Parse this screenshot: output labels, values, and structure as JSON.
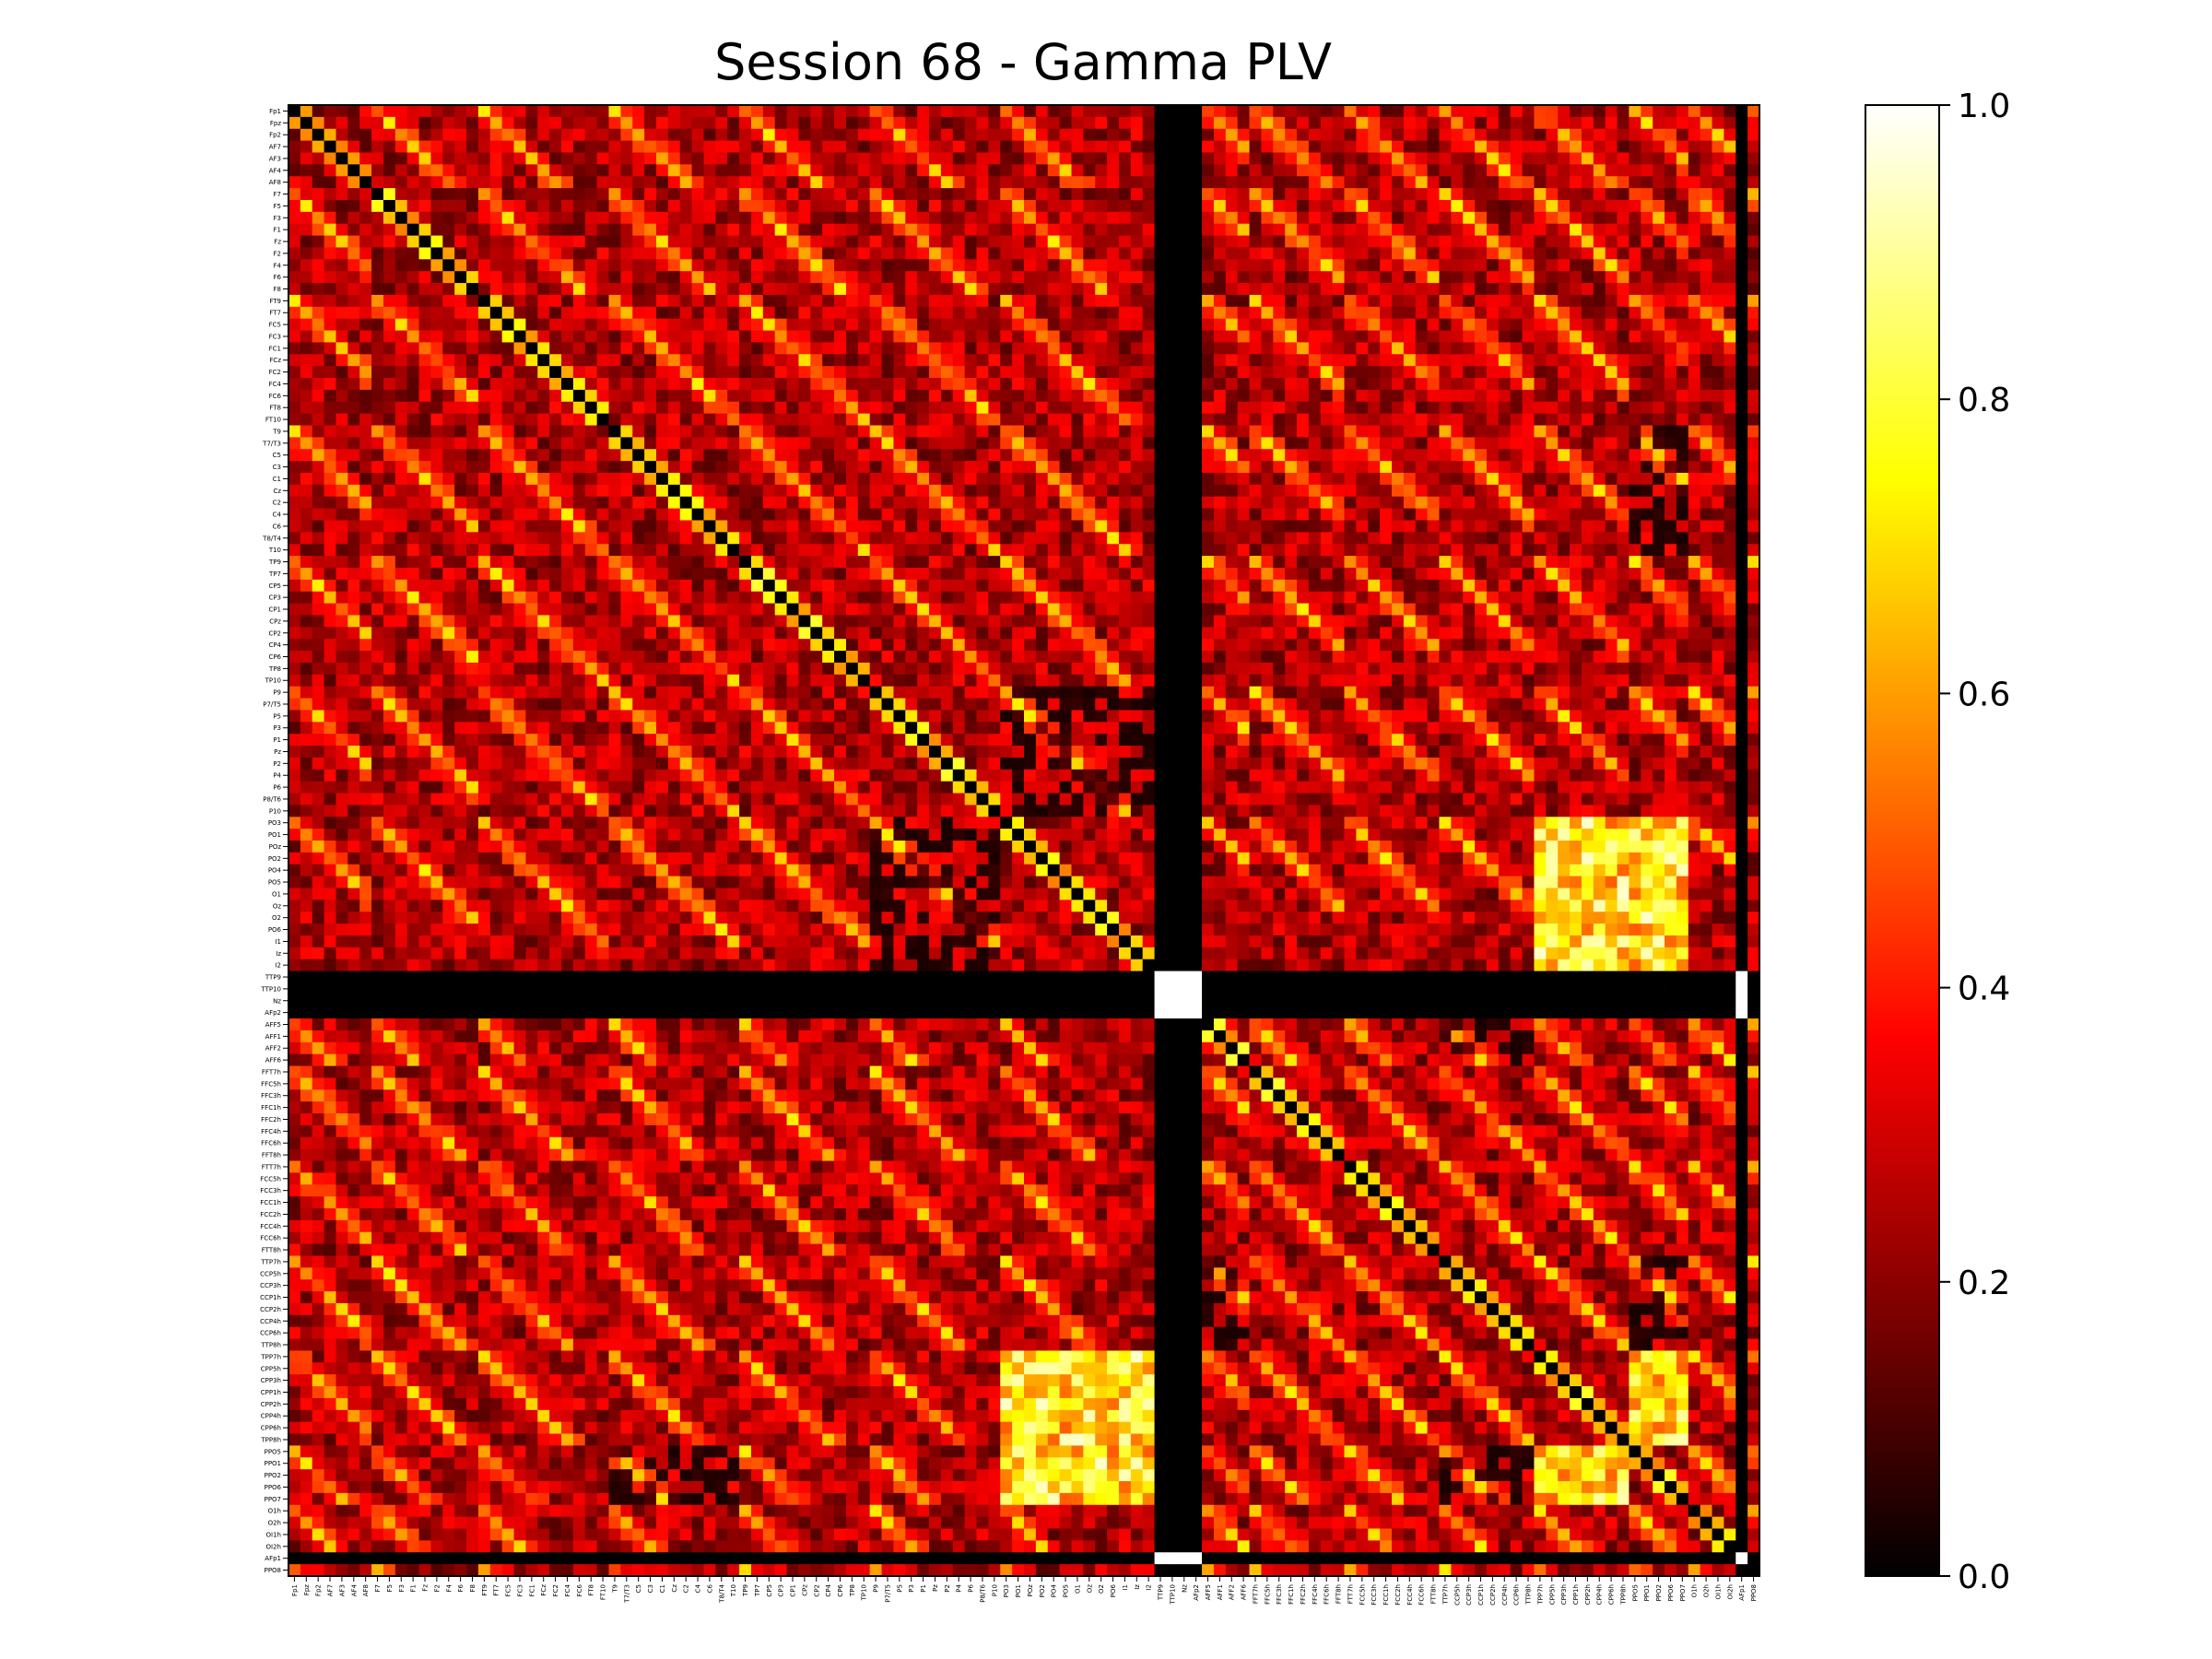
{
  "chart_data": {
    "type": "heatmap",
    "title": "Session 68 - Gamma PLV",
    "xlabel": "",
    "ylabel": "",
    "channels": [
      "Fp1",
      "Fpz",
      "Fp2",
      "AF7",
      "AF3",
      "AF4",
      "AF8",
      "F7",
      "F5",
      "F3",
      "F1",
      "Fz",
      "F2",
      "F4",
      "F6",
      "F8",
      "FT9",
      "FT7",
      "FC5",
      "FC3",
      "FC1",
      "FCz",
      "FC2",
      "FC4",
      "FC6",
      "FT8",
      "FT10",
      "T9",
      "T7/T3",
      "C5",
      "C3",
      "C1",
      "Cz",
      "C2",
      "C4",
      "C6",
      "T8/T4",
      "T10",
      "TP9",
      "TP7",
      "CP5",
      "CP3",
      "CP1",
      "CPz",
      "CP2",
      "CP4",
      "CP6",
      "TP8",
      "TP10",
      "P9",
      "P7/T5",
      "P5",
      "P3",
      "P1",
      "Pz",
      "P2",
      "P4",
      "P6",
      "P8/T6",
      "P10",
      "PO3",
      "PO1",
      "POz",
      "PO2",
      "PO4",
      "PO5",
      "O1",
      "Oz",
      "O2",
      "PO6",
      "I1",
      "Iz",
      "I2",
      "TTP9",
      "TTP10",
      "Nz",
      "AFp2",
      "AFF5",
      "AFF1",
      "AFF2",
      "AFF6",
      "FFT7h",
      "FFC5h",
      "FFC3h",
      "FFC1h",
      "FFC2h",
      "FFC4h",
      "FFC6h",
      "FFT8h",
      "FTT7h",
      "FCC5h",
      "FCC3h",
      "FCC1h",
      "FCC2h",
      "FCC4h",
      "FCC6h",
      "FTT8h",
      "TTP7h",
      "CCP5h",
      "CCP3h",
      "CCP1h",
      "CCP2h",
      "CCP4h",
      "CCP6h",
      "TTP8h",
      "TPP7h",
      "CPP5h",
      "CPP3h",
      "CPP1h",
      "CPP2h",
      "CPP4h",
      "CPP6h",
      "TPP8h",
      "PPO5",
      "PPO1",
      "PPO2",
      "PPO6",
      "PPO7",
      "O1h",
      "O2h",
      "OI1h",
      "OI2h",
      "AFp1",
      "PPO8"
    ],
    "groups": [
      [
        0,
        7
      ],
      [
        7,
        16
      ],
      [
        16,
        27
      ],
      [
        27,
        38
      ],
      [
        38,
        49
      ],
      [
        49,
        60
      ],
      [
        60,
        73
      ],
      [
        73,
        77
      ],
      [
        77,
        81
      ],
      [
        81,
        89
      ],
      [
        89,
        97
      ],
      [
        97,
        105
      ],
      [
        105,
        113
      ],
      [
        113,
        118
      ],
      [
        118,
        122
      ],
      [
        122,
        123
      ],
      [
        123,
        124
      ]
    ],
    "flat_channels": [
      73,
      74,
      75,
      76,
      122
    ],
    "zero_groups": [
      [
        5,
        6
      ],
      [
        8,
        11
      ],
      [
        3,
        13
      ],
      [
        11,
        13
      ],
      [
        4,
        7
      ]
    ],
    "hot_groups": [
      [
        6,
        12
      ],
      [
        6,
        13
      ],
      [
        12,
        13
      ]
    ],
    "colorbar": {
      "min": 0.0,
      "max": 1.0,
      "ticks": [
        "0.0",
        "0.2",
        "0.4",
        "0.6",
        "0.8",
        "1.0"
      ],
      "colormap": "hot"
    },
    "value_summary": {
      "diagonal": 0.0,
      "adjacent_off_diagonal": [
        0.55,
        0.8
      ],
      "homologous_diagonals": [
        0.45,
        0.7
      ],
      "occipital_block": [
        0.5,
        0.95
      ],
      "background": [
        0.05,
        0.4
      ],
      "flat_channel_pairs": 1.0
    }
  }
}
